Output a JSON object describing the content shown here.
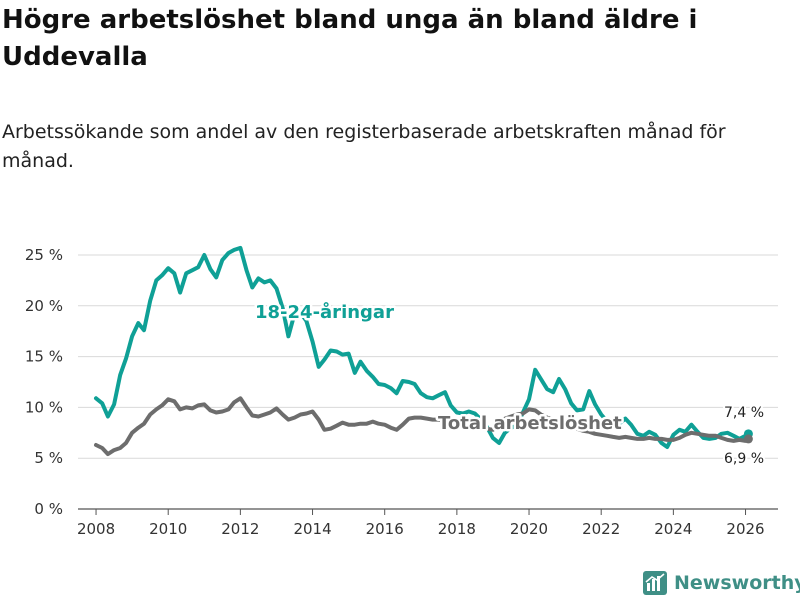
{
  "header": {
    "title": "Högre arbetslöshet bland unga än bland äldre i Uddevalla",
    "subtitle": "Arbetssökande som andel av den registerbaserade arbetskraften månad för månad."
  },
  "brand": {
    "name": "Newsworthy",
    "icon": "newsworthy-logo-icon",
    "color": "#3f8f86"
  },
  "chart_data": {
    "type": "line",
    "title": "Högre arbetslöshet bland unga än bland äldre i Uddevalla",
    "xlabel": "",
    "ylabel": "",
    "xlim": [
      2007.5,
      2026.9
    ],
    "ylim": [
      0,
      25
    ],
    "yticks": [
      0,
      5,
      10,
      15,
      20,
      25
    ],
    "ytick_labels": [
      "0 %",
      "5 %",
      "10 %",
      "15 %",
      "20 %",
      "25 %"
    ],
    "xticks": [
      2008,
      2010,
      2012,
      2014,
      2016,
      2018,
      2020,
      2022,
      2024,
      2026
    ],
    "xtick_labels": [
      "2008",
      "2010",
      "2012",
      "2014",
      "2016",
      "2018",
      "2020",
      "2022",
      "2024",
      "2026"
    ],
    "grid": "horizontal",
    "series": [
      {
        "name": "18-24-åringar",
        "label": "18-24-åringar",
        "color": "#0fa096",
        "end_label": "7,4 %",
        "x": [
          2008.0,
          2008.17,
          2008.33,
          2008.5,
          2008.67,
          2008.83,
          2009.0,
          2009.17,
          2009.33,
          2009.5,
          2009.67,
          2009.83,
          2010.0,
          2010.17,
          2010.33,
          2010.5,
          2010.67,
          2010.83,
          2011.0,
          2011.17,
          2011.33,
          2011.5,
          2011.67,
          2011.83,
          2012.0,
          2012.17,
          2012.33,
          2012.5,
          2012.67,
          2012.83,
          2013.0,
          2013.17,
          2013.33,
          2013.5,
          2013.67,
          2013.83,
          2014.0,
          2014.17,
          2014.33,
          2014.5,
          2014.67,
          2014.83,
          2015.0,
          2015.17,
          2015.33,
          2015.5,
          2015.67,
          2015.83,
          2016.0,
          2016.17,
          2016.33,
          2016.5,
          2016.67,
          2016.83,
          2017.0,
          2017.17,
          2017.33,
          2017.5,
          2017.67,
          2017.83,
          2018.0,
          2018.17,
          2018.33,
          2018.5,
          2018.67,
          2018.83,
          2019.0,
          2019.17,
          2019.33,
          2019.5,
          2019.67,
          2019.83,
          2020.0,
          2020.17,
          2020.33,
          2020.5,
          2020.67,
          2020.83,
          2021.0,
          2021.17,
          2021.33,
          2021.5,
          2021.67,
          2021.83,
          2022.0,
          2022.17,
          2022.33,
          2022.5,
          2022.67,
          2022.83,
          2023.0,
          2023.17,
          2023.33,
          2023.5,
          2023.67,
          2023.83,
          2024.0,
          2024.17,
          2024.33,
          2024.5,
          2024.67,
          2024.83,
          2025.0,
          2025.17,
          2025.33,
          2025.5,
          2025.67,
          2025.83,
          2026.0,
          2026.08
        ],
        "values": [
          10.9,
          10.4,
          9.1,
          10.3,
          13.2,
          14.8,
          17.0,
          18.3,
          17.6,
          20.5,
          22.5,
          23.0,
          23.7,
          23.2,
          21.3,
          23.2,
          23.5,
          23.8,
          25.0,
          23.6,
          22.8,
          24.5,
          25.2,
          25.5,
          25.7,
          23.5,
          21.8,
          22.7,
          22.3,
          22.5,
          21.7,
          19.8,
          17.0,
          19.2,
          19.3,
          18.5,
          16.5,
          14.0,
          14.7,
          15.6,
          15.5,
          15.2,
          15.3,
          13.4,
          14.5,
          13.6,
          13.0,
          12.3,
          12.2,
          11.9,
          11.4,
          12.6,
          12.5,
          12.3,
          11.4,
          11.0,
          10.9,
          11.2,
          11.5,
          10.2,
          9.5,
          9.4,
          9.6,
          9.4,
          8.8,
          8.1,
          7.0,
          6.5,
          7.5,
          8.0,
          8.2,
          9.5,
          10.8,
          13.7,
          12.8,
          11.8,
          11.5,
          12.8,
          11.8,
          10.4,
          9.7,
          9.8,
          11.6,
          10.3,
          9.3,
          8.6,
          8.1,
          8.4,
          8.9,
          8.3,
          7.4,
          7.2,
          7.6,
          7.3,
          6.5,
          6.1,
          7.3,
          7.8,
          7.6,
          8.3,
          7.6,
          7.0,
          6.9,
          7.0,
          7.4,
          7.5,
          7.2,
          6.9,
          7.2,
          7.4
        ]
      },
      {
        "name": "Total arbetslöshet",
        "label": "Total arbetslöshet",
        "color": "#6d6d6d",
        "end_label": "6,9 %",
        "x": [
          2008.0,
          2008.17,
          2008.33,
          2008.5,
          2008.67,
          2008.83,
          2009.0,
          2009.17,
          2009.33,
          2009.5,
          2009.67,
          2009.83,
          2010.0,
          2010.17,
          2010.33,
          2010.5,
          2010.67,
          2010.83,
          2011.0,
          2011.17,
          2011.33,
          2011.5,
          2011.67,
          2011.83,
          2012.0,
          2012.17,
          2012.33,
          2012.5,
          2012.67,
          2012.83,
          2013.0,
          2013.17,
          2013.33,
          2013.5,
          2013.67,
          2013.83,
          2014.0,
          2014.17,
          2014.33,
          2014.5,
          2014.67,
          2014.83,
          2015.0,
          2015.17,
          2015.33,
          2015.5,
          2015.67,
          2015.83,
          2016.0,
          2016.17,
          2016.33,
          2016.5,
          2016.67,
          2016.83,
          2017.0,
          2017.17,
          2017.33,
          2017.5,
          2017.67,
          2017.83,
          2018.0,
          2018.17,
          2018.33,
          2018.5,
          2018.67,
          2018.83,
          2019.0,
          2019.17,
          2019.33,
          2019.5,
          2019.67,
          2019.83,
          2020.0,
          2020.17,
          2020.33,
          2020.5,
          2020.67,
          2020.83,
          2021.0,
          2021.17,
          2021.33,
          2021.5,
          2021.67,
          2021.83,
          2022.0,
          2022.17,
          2022.33,
          2022.5,
          2022.67,
          2022.83,
          2023.0,
          2023.17,
          2023.33,
          2023.5,
          2023.67,
          2023.83,
          2024.0,
          2024.17,
          2024.33,
          2024.5,
          2024.67,
          2024.83,
          2025.0,
          2025.17,
          2025.33,
          2025.5,
          2025.67,
          2025.83,
          2026.0,
          2026.08
        ],
        "values": [
          6.3,
          6.0,
          5.4,
          5.8,
          6.0,
          6.5,
          7.5,
          8.0,
          8.4,
          9.3,
          9.8,
          10.2,
          10.8,
          10.6,
          9.8,
          10.0,
          9.9,
          10.2,
          10.3,
          9.7,
          9.5,
          9.6,
          9.8,
          10.5,
          10.9,
          10.0,
          9.2,
          9.1,
          9.3,
          9.5,
          9.9,
          9.3,
          8.8,
          9.0,
          9.3,
          9.4,
          9.6,
          8.8,
          7.8,
          7.9,
          8.2,
          8.5,
          8.3,
          8.3,
          8.4,
          8.4,
          8.6,
          8.4,
          8.3,
          8.0,
          7.8,
          8.3,
          8.9,
          9.0,
          9.0,
          8.9,
          8.8,
          8.8,
          8.7,
          8.6,
          8.5,
          8.4,
          8.6,
          8.4,
          8.1,
          7.9,
          7.8,
          8.3,
          8.9,
          9.1,
          9.3,
          9.4,
          9.8,
          9.7,
          9.3,
          9.0,
          8.8,
          8.6,
          8.3,
          8.1,
          7.9,
          7.7,
          7.6,
          7.4,
          7.3,
          7.2,
          7.1,
          7.0,
          7.1,
          7.0,
          6.9,
          6.9,
          7.0,
          6.9,
          6.9,
          6.8,
          6.8,
          7.0,
          7.3,
          7.5,
          7.4,
          7.3,
          7.2,
          7.2,
          7.0,
          6.8,
          6.7,
          6.8,
          6.7,
          6.9
        ]
      }
    ]
  }
}
